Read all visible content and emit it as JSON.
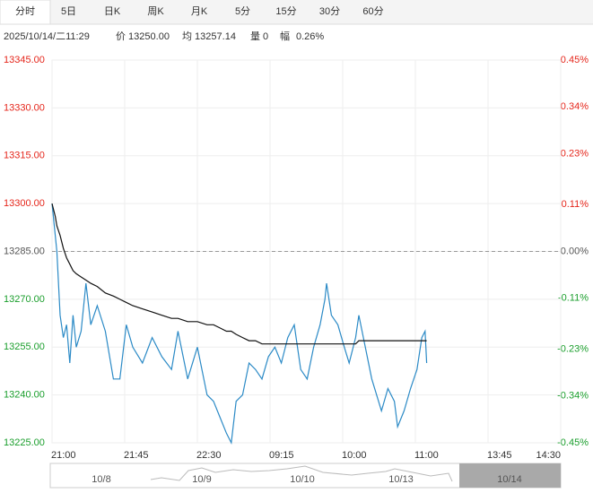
{
  "tabs": [
    "分时",
    "5日",
    "日K",
    "周K",
    "月K",
    "5分",
    "15分",
    "30分",
    "60分"
  ],
  "active_tab": 0,
  "info_bar": [
    "2025/10/14/二11:29",
    "价 13250.00",
    "均 13257.14",
    "量 0",
    "幅",
    "0.26%"
  ],
  "chart_data": {
    "type": "line",
    "x": [
      0,
      2,
      3,
      5,
      7,
      9,
      11,
      13,
      15,
      18,
      21,
      24,
      28,
      33,
      38,
      42,
      46,
      50,
      56,
      62,
      68,
      74,
      78,
      84,
      90,
      96,
      100,
      104,
      108,
      111,
      114,
      118,
      122,
      126,
      130,
      134,
      138,
      142,
      146,
      150,
      154,
      158,
      162,
      166,
      169,
      170,
      173,
      177,
      181,
      184,
      188,
      190,
      194,
      198,
      201,
      204,
      208,
      212,
      214,
      218,
      222,
      226,
      229,
      231,
      232
    ],
    "series": [
      {
        "color": "#2b8ac6",
        "values": [
          13300,
          13290,
          13285,
          13265,
          13258,
          13262,
          13250,
          13265,
          13255,
          13260,
          13275,
          13262,
          13268,
          13260,
          13245,
          13245,
          13262,
          13255,
          13250,
          13258,
          13252,
          13248,
          13260,
          13245,
          13255,
          13240,
          13238,
          13233,
          13228,
          13225,
          13238,
          13240,
          13250,
          13248,
          13245,
          13252,
          13255,
          13250,
          13258,
          13262,
          13248,
          13245,
          13255,
          13262,
          13270,
          13275,
          13265,
          13262,
          13255,
          13250,
          13258,
          13265,
          13255,
          13245,
          13240,
          13235,
          13242,
          13238,
          13230,
          13235,
          13242,
          13248,
          13258,
          13260,
          13250
        ]
      },
      {
        "color": "#111111",
        "values": [
          13300,
          13296,
          13293,
          13290,
          13286,
          13283,
          13281,
          13279,
          13278,
          13277,
          13276,
          13275,
          13274,
          13272,
          13271,
          13270,
          13269,
          13268,
          13267,
          13266,
          13265,
          13264,
          13264,
          13263,
          13263,
          13262,
          13262,
          13261,
          13260,
          13260,
          13259,
          13258,
          13257,
          13257,
          13256,
          13256,
          13256,
          13256,
          13256,
          13256,
          13256,
          13256,
          13256,
          13256,
          13256,
          13256,
          13256,
          13256,
          13256,
          13256,
          13256,
          13257,
          13257,
          13257,
          13257,
          13257,
          13257,
          13257,
          13257,
          13257,
          13257,
          13257,
          13257,
          13257,
          13257
        ]
      }
    ],
    "xlim": [
      0,
      315
    ],
    "xticks": [
      {
        "value": 0,
        "label": "21:00"
      },
      {
        "value": 45,
        "label": "21:45"
      },
      {
        "value": 90,
        "label": "22:30"
      },
      {
        "value": 135,
        "label": "09:15"
      },
      {
        "value": 180,
        "label": "10:00"
      },
      {
        "value": 225,
        "label": "11:00"
      },
      {
        "value": 270,
        "label": "13:45"
      },
      {
        "value": 315,
        "label": "14:30"
      }
    ],
    "ylim": [
      13225,
      13345
    ],
    "yticks": [
      {
        "value": 13345,
        "label": "13345.00"
      },
      {
        "value": 13330,
        "label": "13330.00"
      },
      {
        "value": 13315,
        "label": "13315.00"
      },
      {
        "value": 13300,
        "label": "13300.00"
      },
      {
        "value": 13285,
        "label": "13285.00"
      },
      {
        "value": 13270,
        "label": "13270.00"
      },
      {
        "value": 13255,
        "label": "13255.00"
      },
      {
        "value": 13240,
        "label": "13240.00"
      },
      {
        "value": 13225,
        "label": "13225.00"
      }
    ],
    "y2lim": [
      -0.45,
      0.45
    ],
    "y2ticks": [
      {
        "value": 0.45,
        "label": "0.45%"
      },
      {
        "value": 0.34,
        "label": "0.34%"
      },
      {
        "value": 0.23,
        "label": "0.23%"
      },
      {
        "value": 0.11,
        "label": "0.11%"
      },
      {
        "value": 0,
        "label": "0.00%"
      },
      {
        "value": -0.11,
        "label": "-0.11%"
      },
      {
        "value": -0.23,
        "label": "-0.23%"
      },
      {
        "value": -0.34,
        "label": "-0.34%"
      },
      {
        "value": -0.45,
        "label": "-0.45%"
      }
    ],
    "reference": 13285,
    "grid": true,
    "up_color": "#e5261b",
    "down_color": "#1a9e2c",
    "flat_color": "#555555"
  },
  "navigator": {
    "labels": [
      "10/8",
      "10/9",
      "10/10",
      "10/13",
      "10/14"
    ]
  }
}
